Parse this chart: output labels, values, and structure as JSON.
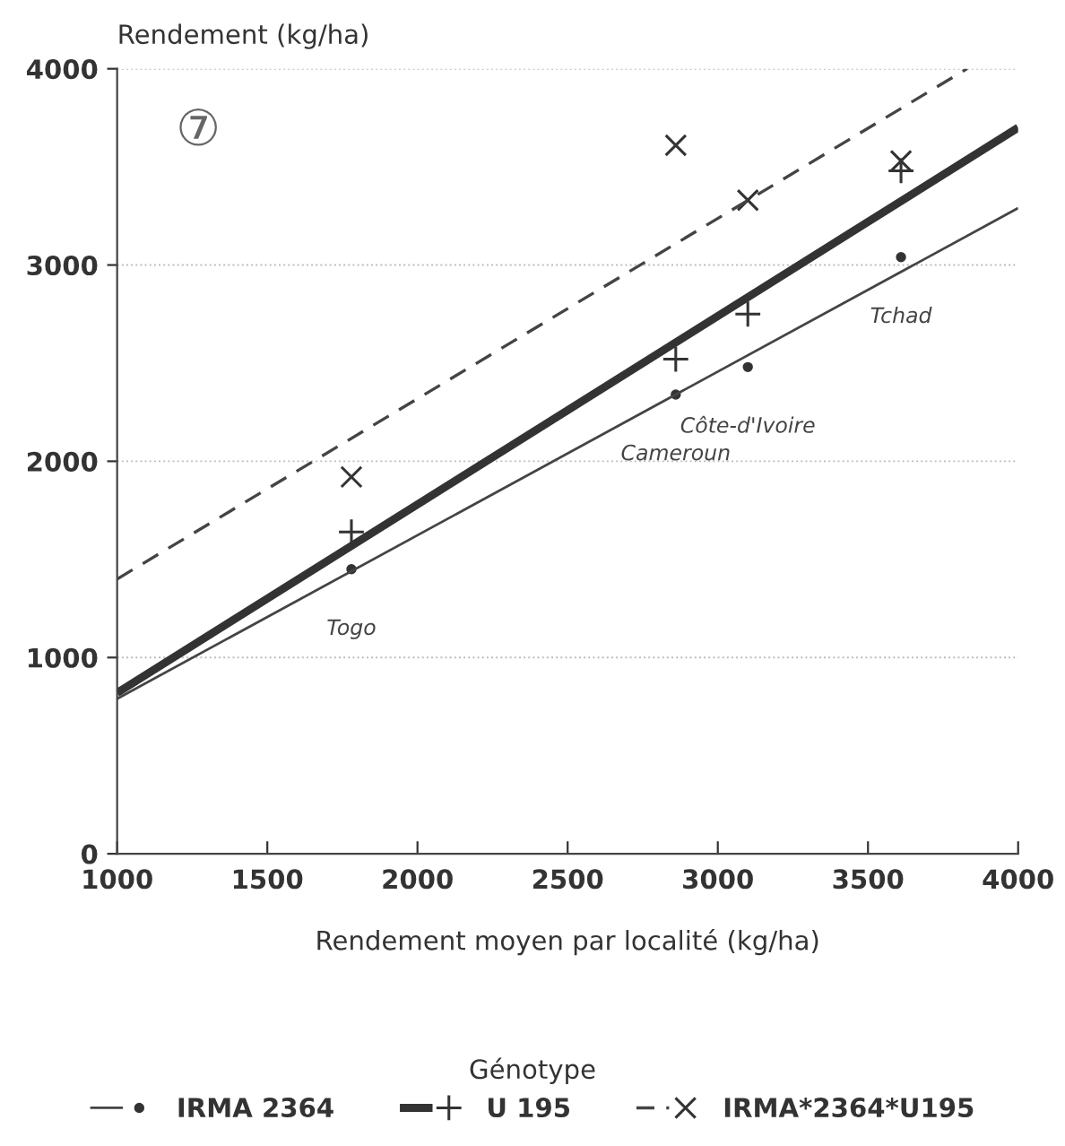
{
  "chart_data": {
    "type": "scatter",
    "xlabel": "Rendement moyen par localité (kg/ha)",
    "ylabel": "Rendement (kg/ha)",
    "legend_title": "Génotype",
    "xlim": [
      1000,
      4000
    ],
    "xticks": [
      1000,
      1500,
      2000,
      2500,
      3000,
      3500,
      4000
    ],
    "ylim": [
      0,
      4000
    ],
    "yticks": [
      0,
      1000,
      2000,
      3000,
      4000
    ],
    "grid": "y",
    "legend": "bottom",
    "series": [
      {
        "name": "IRMA 2364",
        "color": "#333333",
        "marker": "circle",
        "x": [
          1780,
          2860,
          3100,
          3610
        ],
        "values": [
          1450,
          2340,
          2480,
          3040
        ]
      },
      {
        "name": "U 195",
        "color": "#333333",
        "marker": "plus",
        "x": [
          1780,
          2860,
          3100,
          3610
        ],
        "values": [
          1640,
          2520,
          2750,
          3480
        ]
      },
      {
        "name": "IRMA*2364*U195",
        "color": "#333333",
        "marker": "cross",
        "x": [
          1780,
          2860,
          3100,
          3610
        ],
        "values": [
          1920,
          3610,
          3330,
          3530
        ]
      },
      {
        "type": "line",
        "color": "#444444",
        "line_style": "solid",
        "x": [
          1000,
          4000
        ],
        "values": [
          790,
          3290
        ]
      },
      {
        "type": "line",
        "color": "#333333",
        "line_style": "solid",
        "x": [
          1000,
          4000
        ],
        "values": [
          820,
          3700
        ]
      },
      {
        "type": "line",
        "color": "#444444",
        "line_style": "dashed",
        "x": [
          1000,
          3830
        ],
        "values": [
          1400,
          4000
        ]
      }
    ],
    "annotations": [
      "⑦",
      {
        "text": "Togo",
        "x": 1780,
        "y": 1450
      },
      {
        "text": "Cameroun",
        "x": 2860,
        "y": 2340
      },
      {
        "text": "Côte-d'Ivoire",
        "x": 3100,
        "y": 2480
      },
      {
        "text": "Tchad",
        "x": 3610,
        "y": 3040
      }
    ]
  }
}
